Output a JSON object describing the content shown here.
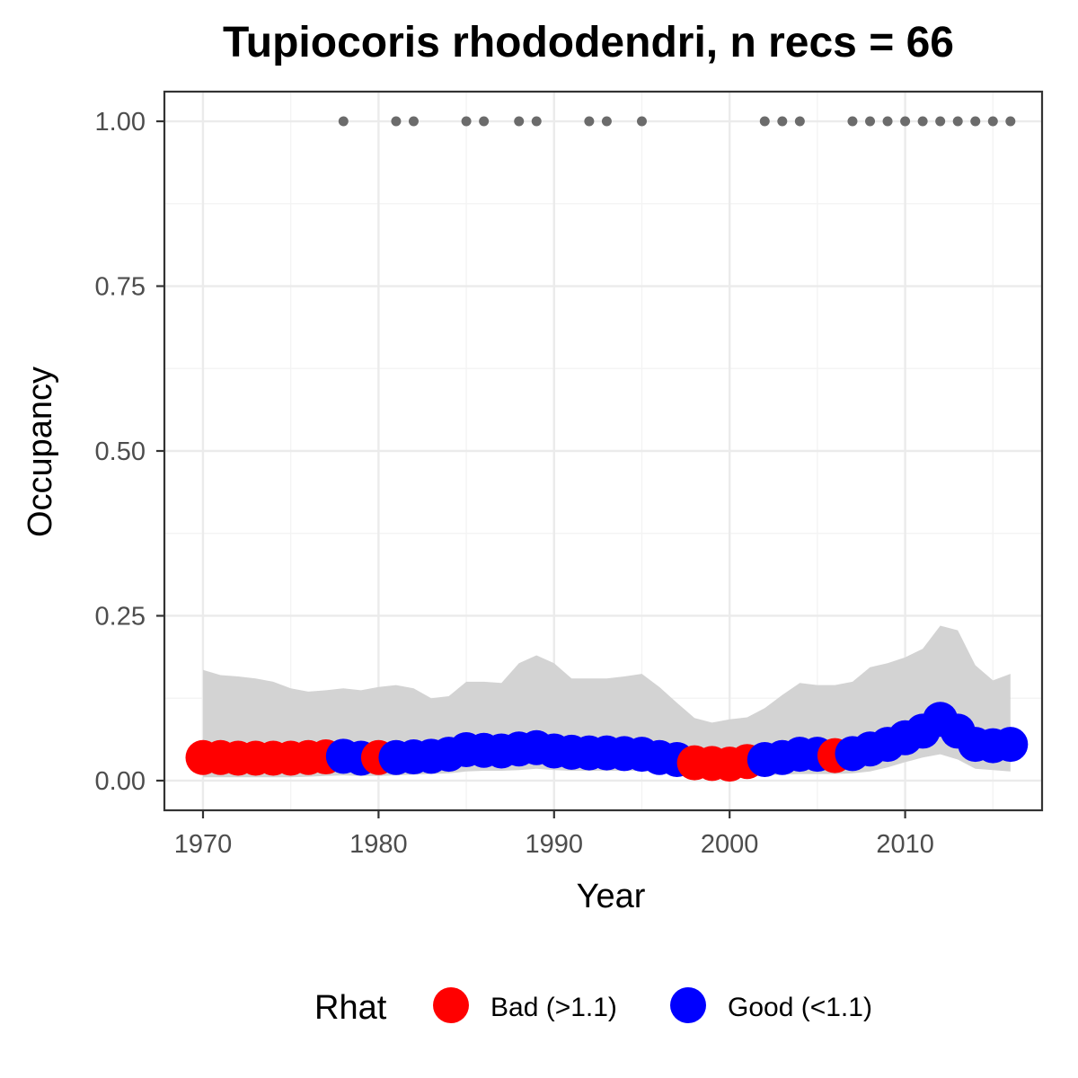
{
  "chart_data": {
    "type": "line",
    "title": "Tupiocoris rhododendri, n recs = 66",
    "xlabel": "Year",
    "ylabel": "Occupancy",
    "xlim": [
      1967.8,
      2017.8
    ],
    "ylim": [
      -0.045,
      1.045
    ],
    "x_ticks": [
      1970,
      1980,
      1990,
      2000,
      2010
    ],
    "x_tick_labels": [
      "1970",
      "1980",
      "1990",
      "2000",
      "2010"
    ],
    "y_ticks": [
      0,
      0.25,
      0.5,
      0.75,
      1.0
    ],
    "y_tick_labels": [
      "0.00",
      "0.25",
      "0.50",
      "0.75",
      "1.00"
    ],
    "grid": true,
    "legend": {
      "title": "Rhat",
      "position": "bottom",
      "entries": [
        {
          "label": "Bad (>1.1)",
          "color": "#ff0000"
        },
        {
          "label": "Good (<1.1)",
          "color": "#0000ff"
        }
      ]
    },
    "colors": {
      "bad": "#ff0000",
      "good": "#0000ff",
      "record": "#6b6b6b",
      "ribbon": "#d3d3d3"
    },
    "years": [
      1970,
      1971,
      1972,
      1973,
      1974,
      1975,
      1976,
      1977,
      1978,
      1979,
      1980,
      1981,
      1982,
      1983,
      1984,
      1985,
      1986,
      1987,
      1988,
      1989,
      1990,
      1991,
      1992,
      1993,
      1994,
      1995,
      1996,
      1997,
      1998,
      1999,
      2000,
      2001,
      2002,
      2003,
      2004,
      2005,
      2006,
      2007,
      2008,
      2009,
      2010,
      2011,
      2012,
      2013,
      2014,
      2015,
      2016
    ],
    "occupancy": [
      0.035,
      0.035,
      0.034,
      0.034,
      0.034,
      0.034,
      0.035,
      0.036,
      0.037,
      0.034,
      0.035,
      0.035,
      0.036,
      0.037,
      0.04,
      0.047,
      0.046,
      0.045,
      0.048,
      0.05,
      0.045,
      0.043,
      0.042,
      0.042,
      0.041,
      0.04,
      0.035,
      0.032,
      0.027,
      0.026,
      0.025,
      0.029,
      0.032,
      0.035,
      0.04,
      0.04,
      0.038,
      0.041,
      0.048,
      0.055,
      0.065,
      0.075,
      0.093,
      0.075,
      0.055,
      0.053,
      0.055
    ],
    "rhat": [
      "Bad",
      "Bad",
      "Bad",
      "Bad",
      "Bad",
      "Bad",
      "Bad",
      "Bad",
      "Good",
      "Good",
      "Bad",
      "Good",
      "Good",
      "Good",
      "Good",
      "Good",
      "Good",
      "Good",
      "Good",
      "Good",
      "Good",
      "Good",
      "Good",
      "Good",
      "Good",
      "Good",
      "Good",
      "Good",
      "Bad",
      "Bad",
      "Bad",
      "Bad",
      "Good",
      "Good",
      "Good",
      "Good",
      "Bad",
      "Good",
      "Good",
      "Good",
      "Good",
      "Good",
      "Good",
      "Good",
      "Good",
      "Good",
      "Good"
    ],
    "upper_ci": [
      0.168,
      0.16,
      0.158,
      0.155,
      0.15,
      0.14,
      0.135,
      0.137,
      0.14,
      0.137,
      0.142,
      0.145,
      0.14,
      0.125,
      0.128,
      0.15,
      0.15,
      0.148,
      0.178,
      0.19,
      0.178,
      0.155,
      0.155,
      0.155,
      0.158,
      0.162,
      0.142,
      0.118,
      0.095,
      0.088,
      0.093,
      0.096,
      0.11,
      0.13,
      0.148,
      0.145,
      0.145,
      0.15,
      0.172,
      0.178,
      0.187,
      0.2,
      0.235,
      0.228,
      0.175,
      0.152,
      0.162
    ],
    "lower_ci": [
      0.005,
      0.005,
      0.005,
      0.005,
      0.005,
      0.005,
      0.006,
      0.007,
      0.008,
      0.007,
      0.007,
      0.008,
      0.009,
      0.01,
      0.011,
      0.014,
      0.015,
      0.015,
      0.016,
      0.018,
      0.016,
      0.015,
      0.015,
      0.015,
      0.015,
      0.015,
      0.012,
      0.01,
      0.007,
      0.006,
      0.006,
      0.007,
      0.008,
      0.009,
      0.01,
      0.01,
      0.01,
      0.011,
      0.014,
      0.02,
      0.028,
      0.035,
      0.04,
      0.032,
      0.018,
      0.016,
      0.014
    ],
    "record_years": [
      1978,
      1981,
      1982,
      1985,
      1986,
      1988,
      1989,
      1992,
      1993,
      1995,
      2002,
      2003,
      2004,
      2007,
      2008,
      2009,
      2010,
      2011,
      2012,
      2013,
      2014,
      2015,
      2016
    ],
    "record_value": 1.0
  }
}
